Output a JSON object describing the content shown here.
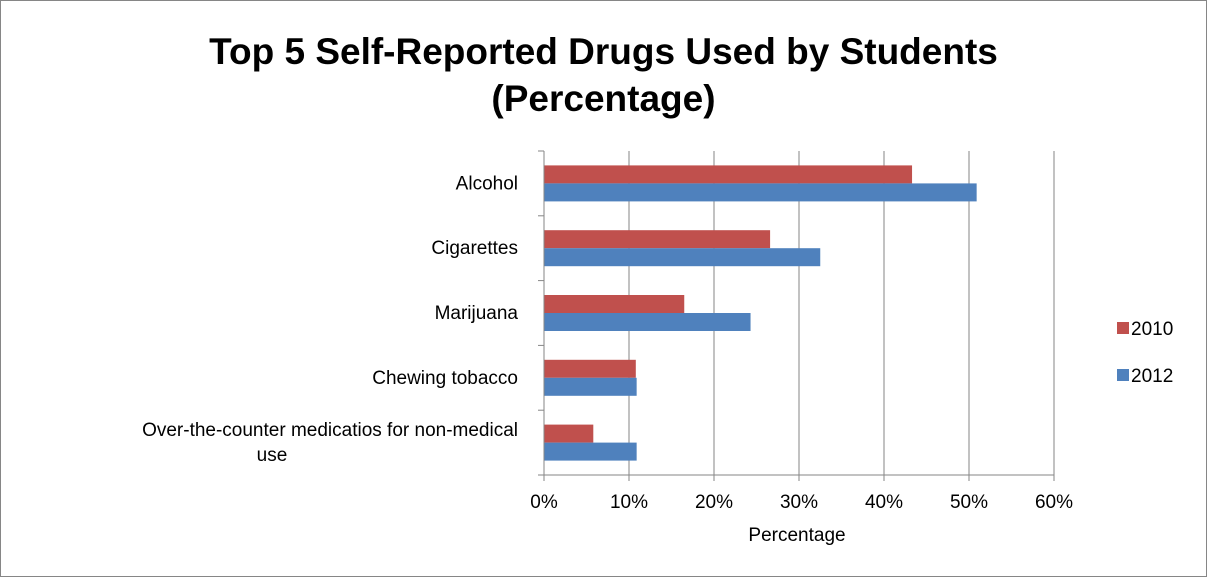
{
  "chart_data": {
    "type": "bar",
    "orientation": "horizontal",
    "title": "Top 5 Self-Reported Drugs Used by Students (Percentage)",
    "title_lines": [
      "Top 5 Self-Reported Drugs Used by Students",
      "(Percentage)"
    ],
    "categories": [
      "Alcohol",
      "Cigarettes",
      "Marijuana",
      "Chewing tobacco",
      "Over-the-counter medicatios for non-medical use"
    ],
    "category_label_lines": [
      [
        "Alcohol"
      ],
      [
        "Cigarettes"
      ],
      [
        "Marijuana"
      ],
      [
        "Chewing tobacco"
      ],
      [
        "Over-the-counter medicatios for non-medical",
        "use"
      ]
    ],
    "series": [
      {
        "name": "2010",
        "color": "#c0504d",
        "values": [
          0.433,
          0.266,
          0.165,
          0.108,
          0.058
        ]
      },
      {
        "name": "2012",
        "color": "#4f81bd",
        "values": [
          0.509,
          0.325,
          0.243,
          0.109,
          0.109
        ]
      }
    ],
    "xlabel": "Percentage",
    "ylabel": "",
    "xlim": [
      0,
      0.6
    ],
    "x_ticks": [
      0,
      0.1,
      0.2,
      0.3,
      0.4,
      0.5,
      0.6
    ],
    "x_tick_labels": [
      "0%",
      "10%",
      "20%",
      "30%",
      "40%",
      "50%",
      "60%"
    ],
    "grid": true,
    "gridline_color": "#868686",
    "legend_position": "right",
    "legend_order": [
      "2010",
      "2012"
    ]
  }
}
